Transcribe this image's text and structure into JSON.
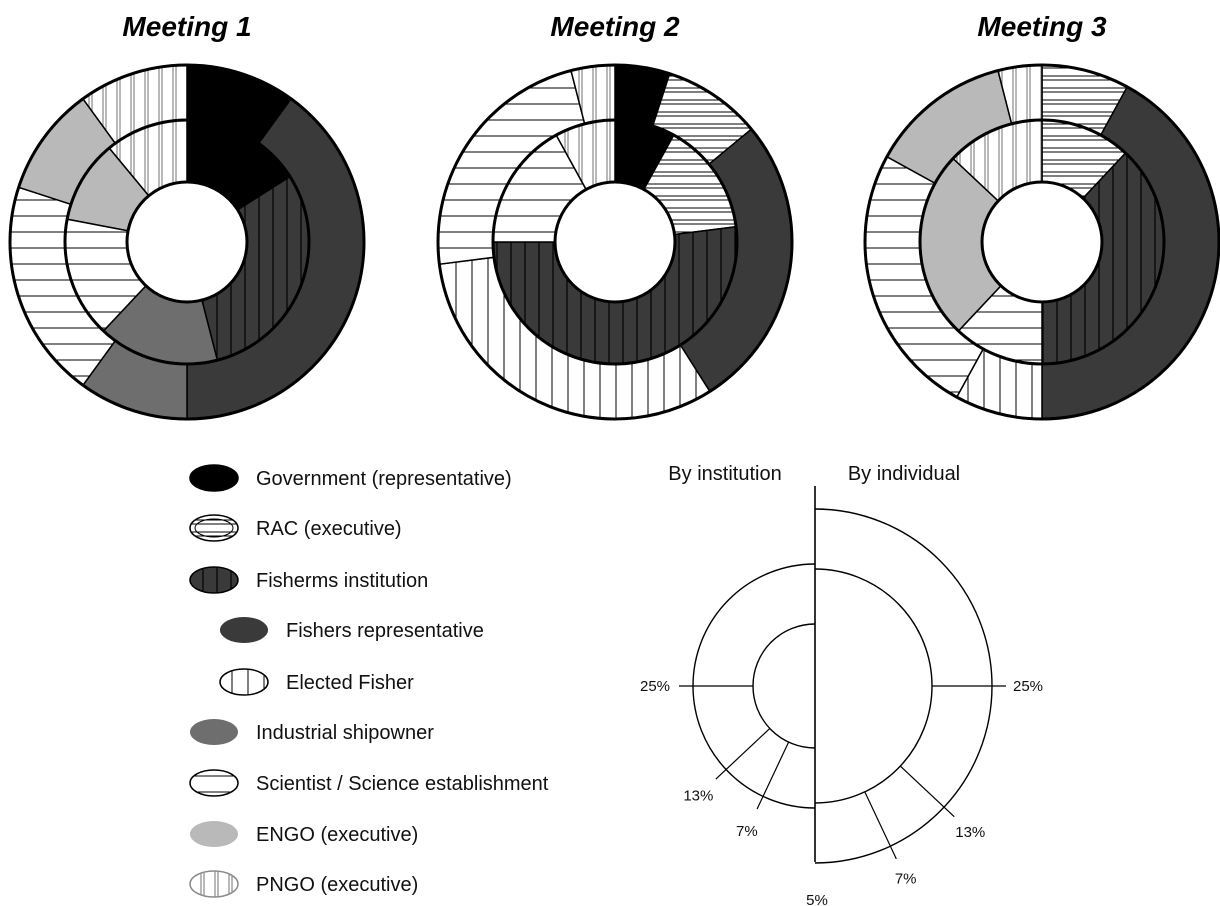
{
  "chart_data": [
    {
      "type": "donut",
      "title": "Meeting 1",
      "rings": [
        {
          "name": "By institution",
          "slices": [
            {
              "category": "Government (representative)",
              "value": 16
            },
            {
              "category": "Fisherms institution",
              "value": 30
            },
            {
              "category": "Industrial shipowner",
              "value": 16
            },
            {
              "category": "Scientist / Science establishment",
              "value": 16
            },
            {
              "category": "ENGO (executive)",
              "value": 11
            },
            {
              "category": "PNGO (executive)",
              "value": 11
            }
          ]
        },
        {
          "name": "By individual",
          "slices": [
            {
              "category": "Government (representative)",
              "value": 10
            },
            {
              "category": "Fishers representative",
              "value": 40
            },
            {
              "category": "Industrial shipowner",
              "value": 10
            },
            {
              "category": "Scientist / Science establishment",
              "value": 20
            },
            {
              "category": "ENGO (executive)",
              "value": 10
            },
            {
              "category": "PNGO (executive)",
              "value": 10
            }
          ]
        }
      ]
    },
    {
      "type": "donut",
      "title": "Meeting 2",
      "rings": [
        {
          "name": "By institution",
          "slices": [
            {
              "category": "Government (representative)",
              "value": 8
            },
            {
              "category": "RAC (executive)",
              "value": 15
            },
            {
              "category": "Fisherms institution",
              "value": 52
            },
            {
              "category": "Scientist / Science establishment",
              "value": 17
            },
            {
              "category": "PNGO (executive)",
              "value": 8
            }
          ]
        },
        {
          "name": "By individual",
          "slices": [
            {
              "category": "Government (representative)",
              "value": 5
            },
            {
              "category": "RAC (executive)",
              "value": 9
            },
            {
              "category": "Fishers representative",
              "value": 27
            },
            {
              "category": "Elected Fisher",
              "value": 32
            },
            {
              "category": "Scientist / Science establishment",
              "value": 23
            },
            {
              "category": "PNGO (executive)",
              "value": 4
            }
          ]
        }
      ]
    },
    {
      "type": "donut",
      "title": "Meeting 3",
      "rings": [
        {
          "name": "By institution",
          "slices": [
            {
              "category": "RAC (executive)",
              "value": 12
            },
            {
              "category": "Fisherms institution",
              "value": 38
            },
            {
              "category": "Scientist / Science establishment",
              "value": 12
            },
            {
              "category": "ENGO (executive)",
              "value": 25
            },
            {
              "category": "PNGO (executive)",
              "value": 13
            }
          ]
        },
        {
          "name": "By individual",
          "slices": [
            {
              "category": "RAC (executive)",
              "value": 8
            },
            {
              "category": "Fishers representative",
              "value": 42
            },
            {
              "category": "Elected Fisher",
              "value": 8
            },
            {
              "category": "Scientist / Science establishment",
              "value": 25
            },
            {
              "category": "ENGO (executive)",
              "value": 13
            },
            {
              "category": "PNGO (executive)",
              "value": 4
            }
          ]
        }
      ]
    }
  ],
  "legend": {
    "items": [
      {
        "label": "Government (representative)",
        "style": "government"
      },
      {
        "label": "RAC (executive)",
        "style": "rac"
      },
      {
        "label": "Fisherms institution",
        "style": "fisherms"
      },
      {
        "label": "Fishers representative",
        "style": "fishers_rep",
        "indent": true
      },
      {
        "label": "Elected Fisher",
        "style": "elected",
        "indent": true
      },
      {
        "label": "Industrial shipowner",
        "style": "shipowner"
      },
      {
        "label": "Scientist / Science establishment",
        "style": "scientist"
      },
      {
        "label": "ENGO (executive)",
        "style": "engo"
      },
      {
        "label": "PNGO (executive)",
        "style": "pngo"
      }
    ]
  },
  "key": {
    "left_heading": "By institution",
    "right_heading": "By individual",
    "left_marks": [
      {
        "value": 25,
        "label": "25%"
      },
      {
        "value": 13,
        "label": "13%"
      },
      {
        "value": 7,
        "label": "7%"
      }
    ],
    "right_marks": [
      {
        "value": 25,
        "label": "25%"
      },
      {
        "value": 13,
        "label": "13%"
      },
      {
        "value": 7,
        "label": "7%"
      },
      {
        "value": 5,
        "label": "5%"
      }
    ]
  },
  "colors": {
    "government": "#000000",
    "fishers_rep": "#3a3a3a",
    "fisherms": "#3a3a3a",
    "shipowner": "#6e6e6e",
    "engo": "#b9b9b9",
    "pngo_stroke": "#8a8a8a",
    "white": "#ffffff"
  }
}
